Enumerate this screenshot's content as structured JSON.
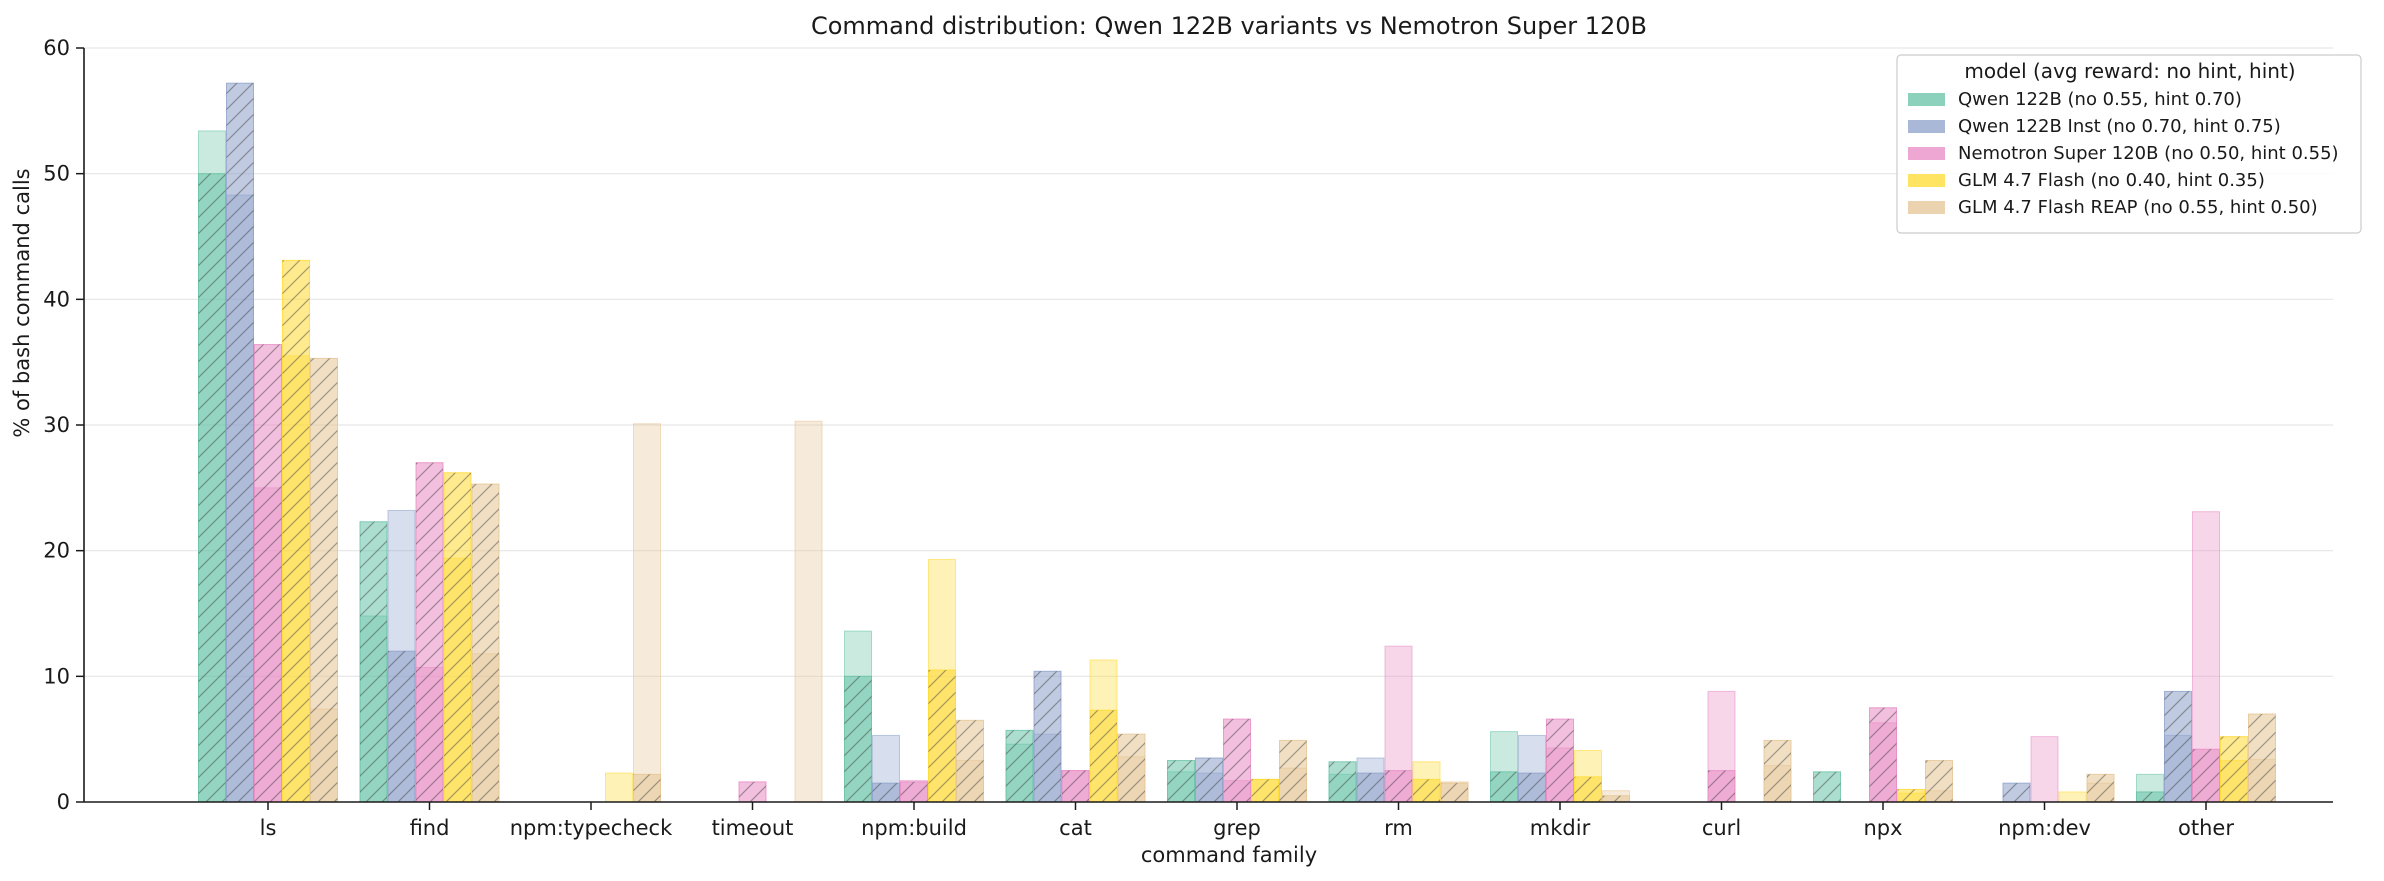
{
  "chart_data": {
    "type": "bar",
    "title": "Command distribution: Qwen 122B variants vs Nemotron Super 120B",
    "xlabel": "command family",
    "ylabel": "% of bash command calls",
    "ylim": [
      0,
      60
    ],
    "yticks": [
      0,
      10,
      20,
      30,
      40,
      50,
      60
    ],
    "grid": "horizontal",
    "legend_title": "model (avg reward: no hint, hint)",
    "legend_position": "top-right",
    "categories": [
      "ls",
      "find",
      "npm:typecheck",
      "timeout",
      "npm:build",
      "cat",
      "grep",
      "rm",
      "mkdir",
      "curl",
      "npx",
      "npm:dev",
      "other"
    ],
    "series": [
      {
        "name": "Qwen 122B (no 0.55, hint 0.70)",
        "color": "#66c2a5",
        "no_hint": [
          53.4,
          14.8,
          0,
          0,
          13.6,
          4.6,
          2.4,
          2.2,
          5.6,
          0,
          0,
          0,
          2.2
        ],
        "hint": [
          50.0,
          22.3,
          0,
          0,
          10.0,
          5.7,
          3.3,
          3.2,
          2.4,
          0,
          2.4,
          0,
          0.8
        ]
      },
      {
        "name": "Qwen 122B Inst (no 0.70, hint 0.75)",
        "color": "#8da0cb",
        "no_hint": [
          48.3,
          23.2,
          0,
          0,
          5.3,
          5.4,
          2.3,
          3.5,
          5.3,
          0,
          0,
          0,
          5.3
        ],
        "hint": [
          57.2,
          12.0,
          0,
          0,
          1.5,
          10.4,
          3.5,
          2.3,
          2.3,
          0,
          0,
          1.5,
          8.8
        ]
      },
      {
        "name": "Nemotron Super 120B (no 0.50, hint 0.55)",
        "color": "#e78ac3",
        "no_hint": [
          25.0,
          10.7,
          0,
          0,
          1.7,
          2.5,
          1.7,
          12.4,
          4.3,
          8.8,
          6.3,
          5.2,
          23.1
        ],
        "hint": [
          36.4,
          27.0,
          0,
          1.6,
          1.6,
          2.5,
          6.6,
          2.5,
          6.6,
          2.5,
          7.5,
          0,
          4.2
        ]
      },
      {
        "name": "GLM 4.7 Flash (no 0.40, hint 0.35)",
        "color": "#ffd92f",
        "no_hint": [
          35.5,
          19.4,
          2.3,
          0,
          19.3,
          11.3,
          1.8,
          3.2,
          4.1,
          0,
          0.7,
          0.8,
          3.3
        ],
        "hint": [
          43.1,
          26.2,
          0,
          0,
          10.5,
          7.3,
          1.8,
          1.8,
          2.0,
          0,
          1.0,
          0,
          5.2
        ]
      },
      {
        "name": "GLM 4.7 Flash REAP (no 0.55, hint 0.50)",
        "color": "#e5c494",
        "no_hint": [
          7.4,
          11.8,
          30.1,
          30.3,
          3.3,
          3.6,
          2.7,
          1.6,
          0.9,
          2.9,
          0.9,
          1.5,
          3.4
        ],
        "hint": [
          35.3,
          25.3,
          2.2,
          0,
          6.5,
          5.4,
          4.9,
          1.5,
          0.5,
          4.9,
          3.3,
          2.2,
          7.0
        ]
      }
    ]
  }
}
